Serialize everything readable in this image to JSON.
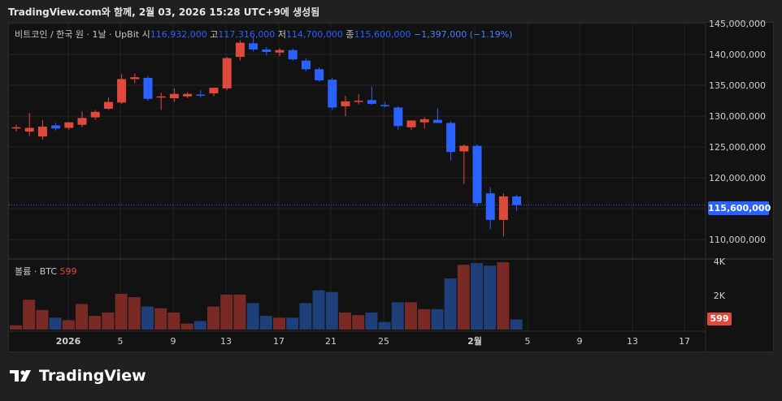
{
  "header_text": "TradingView.com와 함께, 2월 03, 2026 15:28 UTC+9에 생성됨",
  "legend": {
    "symbol": "비트코인 / 한국 원 · 1날 · UpBit",
    "open_label": "시",
    "open": "116,932,000",
    "high_label": "고",
    "high": "117,316,000",
    "low_label": "저",
    "low": "114,700,000",
    "close_label": "종",
    "close": "115,600,000",
    "change": "−1,397,000 (−1.19%)"
  },
  "volume_legend": {
    "label": "볼륨 · BTC",
    "value": "599"
  },
  "last_price_tag": "115,600,000",
  "volume_tag": "599",
  "brand": "TradingView",
  "colors": {
    "up": "#e04a3c",
    "down": "#2962ff",
    "vol_up": "#7a2a24",
    "vol_down": "#1e3f7a"
  },
  "chart_data": {
    "type": "candlestick",
    "price_axis": {
      "min": 107000000,
      "max": 145000000,
      "ticks": [
        "145,000,000",
        "140,000,000",
        "135,000,000",
        "130,000,000",
        "125,000,000",
        "120,000,000",
        "115,000,000",
        "110,000,000"
      ]
    },
    "volume_axis": {
      "ticks": [
        "4K",
        "2K"
      ]
    },
    "x_ticks": [
      "2026",
      "5",
      "9",
      "13",
      "17",
      "21",
      "25",
      "2월",
      "5",
      "9",
      "13",
      "17"
    ],
    "candles": [
      {
        "o": 128000000,
        "h": 128600000,
        "l": 127500000,
        "c": 128200000,
        "v": 250
      },
      {
        "o": 127500000,
        "h": 130500000,
        "l": 126800000,
        "c": 128100000,
        "v": 1750
      },
      {
        "o": 126700000,
        "h": 129400000,
        "l": 126200000,
        "c": 128300000,
        "v": 1150
      },
      {
        "o": 128500000,
        "h": 128900000,
        "l": 127700000,
        "c": 128000000,
        "v": 700
      },
      {
        "o": 128100000,
        "h": 129000000,
        "l": 127800000,
        "c": 129000000,
        "v": 550
      },
      {
        "o": 128600000,
        "h": 130800000,
        "l": 128200000,
        "c": 129700000,
        "v": 1500
      },
      {
        "o": 129800000,
        "h": 131000000,
        "l": 129400000,
        "c": 130700000,
        "v": 800
      },
      {
        "o": 131200000,
        "h": 133000000,
        "l": 131000000,
        "c": 132300000,
        "v": 1000
      },
      {
        "o": 132200000,
        "h": 136800000,
        "l": 132000000,
        "c": 136000000,
        "v": 2100
      },
      {
        "o": 136000000,
        "h": 136900000,
        "l": 135300000,
        "c": 136300000,
        "v": 1900
      },
      {
        "o": 136200000,
        "h": 136500000,
        "l": 132500000,
        "c": 132800000,
        "v": 1350
      },
      {
        "o": 133000000,
        "h": 133800000,
        "l": 131000000,
        "c": 133200000,
        "v": 1250
      },
      {
        "o": 132900000,
        "h": 134500000,
        "l": 132300000,
        "c": 133600000,
        "v": 1000
      },
      {
        "o": 133200000,
        "h": 133900000,
        "l": 132900000,
        "c": 133600000,
        "v": 350
      },
      {
        "o": 133500000,
        "h": 134200000,
        "l": 133000000,
        "c": 133400000,
        "v": 500
      },
      {
        "o": 133700000,
        "h": 134300000,
        "l": 133200000,
        "c": 134600000,
        "v": 1350
      },
      {
        "o": 134500000,
        "h": 139600000,
        "l": 134200000,
        "c": 139400000,
        "v": 2050
      },
      {
        "o": 139600000,
        "h": 142300000,
        "l": 139000000,
        "c": 141900000,
        "v": 2050
      },
      {
        "o": 141800000,
        "h": 142800000,
        "l": 140500000,
        "c": 140800000,
        "v": 1550
      },
      {
        "o": 140800000,
        "h": 141200000,
        "l": 139800000,
        "c": 140400000,
        "v": 800
      },
      {
        "o": 140300000,
        "h": 141000000,
        "l": 139700000,
        "c": 140700000,
        "v": 700
      },
      {
        "o": 140700000,
        "h": 141000000,
        "l": 139000000,
        "c": 139200000,
        "v": 700
      },
      {
        "o": 139000000,
        "h": 139400000,
        "l": 137300000,
        "c": 137600000,
        "v": 1550
      },
      {
        "o": 137600000,
        "h": 137900000,
        "l": 135600000,
        "c": 135800000,
        "v": 2300
      },
      {
        "o": 135900000,
        "h": 136200000,
        "l": 131000000,
        "c": 131400000,
        "v": 2200
      },
      {
        "o": 131600000,
        "h": 133300000,
        "l": 130000000,
        "c": 132400000,
        "v": 1000
      },
      {
        "o": 132300000,
        "h": 133600000,
        "l": 131900000,
        "c": 132500000,
        "v": 850
      },
      {
        "o": 132600000,
        "h": 134800000,
        "l": 131800000,
        "c": 132000000,
        "v": 1000
      },
      {
        "o": 131800000,
        "h": 132300000,
        "l": 131400000,
        "c": 131600000,
        "v": 450
      },
      {
        "o": 131400000,
        "h": 131600000,
        "l": 127800000,
        "c": 128400000,
        "v": 1600
      },
      {
        "o": 128200000,
        "h": 129300000,
        "l": 127800000,
        "c": 129300000,
        "v": 1600
      },
      {
        "o": 129000000,
        "h": 129800000,
        "l": 128000000,
        "c": 129500000,
        "v": 1200
      },
      {
        "o": 129400000,
        "h": 131300000,
        "l": 128900000,
        "c": 128900000,
        "v": 1200
      },
      {
        "o": 128900000,
        "h": 129200000,
        "l": 122800000,
        "c": 124200000,
        "v": 3000
      },
      {
        "o": 124300000,
        "h": 125400000,
        "l": 119000000,
        "c": 125200000,
        "v": 3800
      },
      {
        "o": 125200000,
        "h": 125400000,
        "l": 115300000,
        "c": 115900000,
        "v": 3900
      },
      {
        "o": 117500000,
        "h": 118500000,
        "l": 111700000,
        "c": 113200000,
        "v": 3750
      },
      {
        "o": 113200000,
        "h": 117500000,
        "l": 110500000,
        "c": 117000000,
        "v": 3950
      },
      {
        "o": 117000000,
        "h": 117300000,
        "l": 114700000,
        "c": 115600000,
        "v": 599
      }
    ]
  }
}
